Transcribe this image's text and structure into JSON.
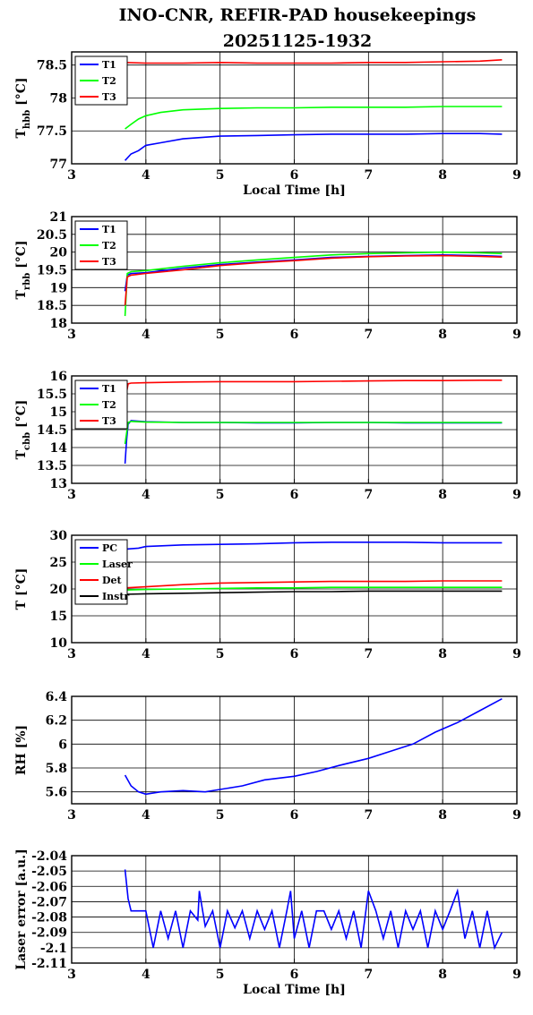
{
  "title": [
    "INO-CNR, REFIR-PAD housekeepings",
    "20251125-1932"
  ],
  "colors": {
    "blue": "#0000ff",
    "green": "#00ff00",
    "red": "#ff0000",
    "black": "#000000"
  },
  "chart_data": [
    {
      "type": "line",
      "ylabel": "T_hbb [°C]",
      "xlabel": "Local Time [h]",
      "xlim": [
        3,
        9
      ],
      "ylim": [
        77,
        78.7
      ],
      "xticks": [
        3,
        4,
        5,
        6,
        7,
        8,
        9
      ],
      "yticks": [
        77,
        77.5,
        78,
        78.5
      ],
      "ytick_labels": [
        "77",
        "77.5",
        "78",
        "78.5"
      ],
      "legend": "top-left",
      "series": [
        {
          "name": "T1",
          "color": "#0000ff",
          "x": [
            3.72,
            3.8,
            3.9,
            4.0,
            4.2,
            4.5,
            5.0,
            5.5,
            6.0,
            6.5,
            7.0,
            7.5,
            8.0,
            8.5,
            8.8
          ],
          "y": [
            77.05,
            77.15,
            77.2,
            77.28,
            77.32,
            77.38,
            77.42,
            77.43,
            77.44,
            77.45,
            77.45,
            77.45,
            77.46,
            77.46,
            77.45
          ]
        },
        {
          "name": "T2",
          "color": "#00ff00",
          "x": [
            3.72,
            3.8,
            3.9,
            4.0,
            4.2,
            4.5,
            5.0,
            5.5,
            6.0,
            6.5,
            7.0,
            7.5,
            8.0,
            8.5,
            8.8
          ],
          "y": [
            77.53,
            77.6,
            77.68,
            77.73,
            77.78,
            77.82,
            77.84,
            77.85,
            77.85,
            77.86,
            77.86,
            77.86,
            77.87,
            77.87,
            77.87
          ]
        },
        {
          "name": "T3",
          "color": "#ff0000",
          "x": [
            3.72,
            4.0,
            4.5,
            5.0,
            5.5,
            6.0,
            6.5,
            7.0,
            7.5,
            8.0,
            8.5,
            8.8
          ],
          "y": [
            78.54,
            78.53,
            78.53,
            78.54,
            78.53,
            78.53,
            78.53,
            78.54,
            78.54,
            78.55,
            78.56,
            78.58
          ]
        }
      ]
    },
    {
      "type": "line",
      "ylabel": "T_rbb [°C]",
      "xlabel": "",
      "xlim": [
        3,
        9
      ],
      "ylim": [
        18,
        21
      ],
      "xticks": [
        3,
        4,
        5,
        6,
        7,
        8,
        9
      ],
      "yticks": [
        18,
        18.5,
        19,
        19.5,
        20,
        20.5,
        21
      ],
      "ytick_labels": [
        "18",
        "18.5",
        "19",
        "19.5",
        "20",
        "20.5",
        "21"
      ],
      "legend": "top-left",
      "series": [
        {
          "name": "T1",
          "color": "#0000ff",
          "x": [
            3.72,
            3.75,
            3.8,
            4.0,
            4.5,
            5.0,
            5.5,
            6.0,
            6.5,
            7.0,
            7.5,
            8.0,
            8.5,
            8.8
          ],
          "y": [
            18.9,
            19.35,
            19.4,
            19.42,
            19.55,
            19.65,
            19.72,
            19.78,
            19.85,
            19.88,
            19.9,
            19.92,
            19.9,
            19.88
          ]
        },
        {
          "name": "T2",
          "color": "#00ff00",
          "x": [
            3.72,
            3.75,
            3.8,
            4.0,
            4.5,
            5.0,
            5.5,
            6.0,
            6.5,
            7.0,
            7.5,
            8.0,
            8.5,
            8.8
          ],
          "y": [
            18.2,
            19.4,
            19.45,
            19.48,
            19.6,
            19.7,
            19.78,
            19.85,
            19.92,
            19.96,
            19.98,
            20.0,
            19.98,
            19.96
          ]
        },
        {
          "name": "T3",
          "color": "#ff0000",
          "x": [
            3.72,
            3.75,
            3.8,
            4.0,
            4.5,
            5.0,
            5.5,
            6.0,
            6.5,
            7.0,
            7.5,
            8.0,
            8.5,
            8.8
          ],
          "y": [
            18.5,
            19.3,
            19.35,
            19.4,
            19.5,
            19.62,
            19.7,
            19.76,
            19.83,
            19.87,
            19.89,
            19.9,
            19.88,
            19.86
          ]
        }
      ]
    },
    {
      "type": "line",
      "ylabel": "T_cbb [°C]",
      "xlabel": "",
      "xlim": [
        3,
        9
      ],
      "ylim": [
        13,
        16
      ],
      "xticks": [
        3,
        4,
        5,
        6,
        7,
        8,
        9
      ],
      "yticks": [
        13,
        13.5,
        14,
        14.5,
        15,
        15.5,
        16
      ],
      "ytick_labels": [
        "13",
        "13.5",
        "14",
        "14.5",
        "15",
        "15.5",
        "16"
      ],
      "legend": "top-left",
      "series": [
        {
          "name": "T1",
          "color": "#0000ff",
          "x": [
            3.72,
            3.74,
            3.76,
            3.8,
            4.0,
            4.5,
            5.0,
            5.5,
            6.0,
            6.5,
            7.0,
            7.5,
            8.0,
            8.5,
            8.8
          ],
          "y": [
            13.55,
            14.2,
            14.65,
            14.75,
            14.72,
            14.7,
            14.7,
            14.69,
            14.69,
            14.7,
            14.7,
            14.69,
            14.69,
            14.69,
            14.69
          ]
        },
        {
          "name": "T2",
          "color": "#00ff00",
          "x": [
            3.72,
            3.74,
            3.76,
            3.8,
            4.0,
            4.5,
            5.0,
            5.5,
            6.0,
            6.5,
            7.0,
            7.5,
            8.0,
            8.5,
            8.8
          ],
          "y": [
            14.1,
            14.4,
            14.7,
            14.73,
            14.71,
            14.7,
            14.7,
            14.7,
            14.7,
            14.7,
            14.7,
            14.7,
            14.7,
            14.7,
            14.7
          ]
        },
        {
          "name": "T3",
          "color": "#ff0000",
          "x": [
            3.72,
            3.76,
            3.8,
            4.0,
            4.5,
            5.0,
            5.5,
            6.0,
            6.5,
            7.0,
            7.5,
            8.0,
            8.5,
            8.8
          ],
          "y": [
            15.3,
            15.78,
            15.8,
            15.81,
            15.83,
            15.84,
            15.84,
            15.84,
            15.85,
            15.86,
            15.87,
            15.87,
            15.88,
            15.88
          ]
        }
      ]
    },
    {
      "type": "line",
      "ylabel": "T [°C]",
      "xlabel": "",
      "xlim": [
        3,
        9
      ],
      "ylim": [
        10,
        30
      ],
      "xticks": [
        3,
        4,
        5,
        6,
        7,
        8,
        9
      ],
      "yticks": [
        10,
        15,
        20,
        25,
        30
      ],
      "ytick_labels": [
        "10",
        "15",
        "20",
        "25",
        "30"
      ],
      "legend": "top-left",
      "series": [
        {
          "name": "PC",
          "color": "#0000ff",
          "x": [
            3.72,
            3.9,
            4.0,
            4.5,
            5.0,
            5.5,
            6.0,
            6.5,
            7.0,
            7.5,
            8.0,
            8.5,
            8.8
          ],
          "y": [
            27.4,
            27.6,
            27.9,
            28.2,
            28.3,
            28.4,
            28.6,
            28.7,
            28.7,
            28.7,
            28.6,
            28.6,
            28.6
          ]
        },
        {
          "name": "Laser",
          "color": "#00ff00",
          "x": [
            3.72,
            4.0,
            4.5,
            5.0,
            5.5,
            6.0,
            6.5,
            7.0,
            7.5,
            8.0,
            8.5,
            8.8
          ],
          "y": [
            19.8,
            19.9,
            20.0,
            20.1,
            20.2,
            20.2,
            20.3,
            20.3,
            20.3,
            20.3,
            20.3,
            20.3
          ]
        },
        {
          "name": "Det",
          "color": "#ff0000",
          "x": [
            3.72,
            4.0,
            4.5,
            5.0,
            5.5,
            6.0,
            6.5,
            7.0,
            7.5,
            8.0,
            8.5,
            8.8
          ],
          "y": [
            20.2,
            20.4,
            20.8,
            21.1,
            21.2,
            21.3,
            21.4,
            21.4,
            21.4,
            21.5,
            21.5,
            21.5
          ]
        },
        {
          "name": "Instr",
          "color": "#000000",
          "x": [
            3.72,
            4.0,
            4.5,
            5.0,
            5.5,
            6.0,
            6.5,
            7.0,
            7.5,
            8.0,
            8.5,
            8.8
          ],
          "y": [
            19.0,
            19.1,
            19.2,
            19.3,
            19.4,
            19.5,
            19.5,
            19.6,
            19.6,
            19.6,
            19.6,
            19.6
          ]
        }
      ]
    },
    {
      "type": "line",
      "ylabel": "RH [%]",
      "xlabel": "",
      "xlim": [
        3,
        9
      ],
      "ylim": [
        5.5,
        6.4
      ],
      "xticks": [
        3,
        4,
        5,
        6,
        7,
        8,
        9
      ],
      "yticks": [
        5.6,
        5.8,
        6.0,
        6.2,
        6.4
      ],
      "ytick_labels": [
        "5.6",
        "5.8",
        "6",
        "6.2",
        "6.4"
      ],
      "legend": "none",
      "series": [
        {
          "name": "",
          "color": "#0000ff",
          "x": [
            3.72,
            3.8,
            3.9,
            4.0,
            4.2,
            4.5,
            4.8,
            5.0,
            5.3,
            5.6,
            6.0,
            6.3,
            6.6,
            7.0,
            7.3,
            7.6,
            7.9,
            8.2,
            8.5,
            8.8
          ],
          "y": [
            5.74,
            5.65,
            5.6,
            5.58,
            5.6,
            5.61,
            5.6,
            5.62,
            5.65,
            5.7,
            5.73,
            5.77,
            5.82,
            5.88,
            5.94,
            6.0,
            6.1,
            6.18,
            6.28,
            6.38
          ]
        }
      ]
    },
    {
      "type": "line",
      "ylabel": "Laser error [a.u.]",
      "xlabel": "Local Time [h]",
      "xlim": [
        3,
        9
      ],
      "ylim": [
        -2.11,
        -2.04
      ],
      "xticks": [
        3,
        4,
        5,
        6,
        7,
        8,
        9
      ],
      "yticks": [
        -2.11,
        -2.1,
        -2.09,
        -2.08,
        -2.07,
        -2.06,
        -2.05,
        -2.04
      ],
      "ytick_labels": [
        "-2.11",
        "-2.1",
        "-2.09",
        "-2.08",
        "-2.07",
        "-2.06",
        "-2.05",
        "-2.04"
      ],
      "legend": "none",
      "series": [
        {
          "name": "",
          "color": "#0000ff",
          "x": [
            3.72,
            3.76,
            3.8,
            3.9,
            4.0,
            4.1,
            4.2,
            4.3,
            4.4,
            4.5,
            4.6,
            4.7,
            4.72,
            4.8,
            4.9,
            5.0,
            5.1,
            5.2,
            5.3,
            5.4,
            5.5,
            5.6,
            5.7,
            5.8,
            5.9,
            5.95,
            6.0,
            6.1,
            6.2,
            6.3,
            6.4,
            6.5,
            6.6,
            6.7,
            6.8,
            6.9,
            7.0,
            7.1,
            7.2,
            7.3,
            7.4,
            7.5,
            7.6,
            7.7,
            7.8,
            7.9,
            8.0,
            8.1,
            8.2,
            8.3,
            8.4,
            8.5,
            8.6,
            8.7,
            8.8
          ],
          "y": [
            -2.049,
            -2.068,
            -2.076,
            -2.076,
            -2.076,
            -2.1,
            -2.076,
            -2.094,
            -2.076,
            -2.1,
            -2.076,
            -2.082,
            -2.063,
            -2.086,
            -2.076,
            -2.1,
            -2.076,
            -2.087,
            -2.076,
            -2.094,
            -2.076,
            -2.088,
            -2.076,
            -2.1,
            -2.076,
            -2.063,
            -2.094,
            -2.076,
            -2.1,
            -2.076,
            -2.076,
            -2.088,
            -2.076,
            -2.094,
            -2.076,
            -2.1,
            -2.063,
            -2.076,
            -2.094,
            -2.076,
            -2.1,
            -2.076,
            -2.088,
            -2.076,
            -2.1,
            -2.076,
            -2.088,
            -2.076,
            -2.063,
            -2.094,
            -2.076,
            -2.1,
            -2.076,
            -2.1,
            -2.09
          ]
        }
      ]
    }
  ]
}
